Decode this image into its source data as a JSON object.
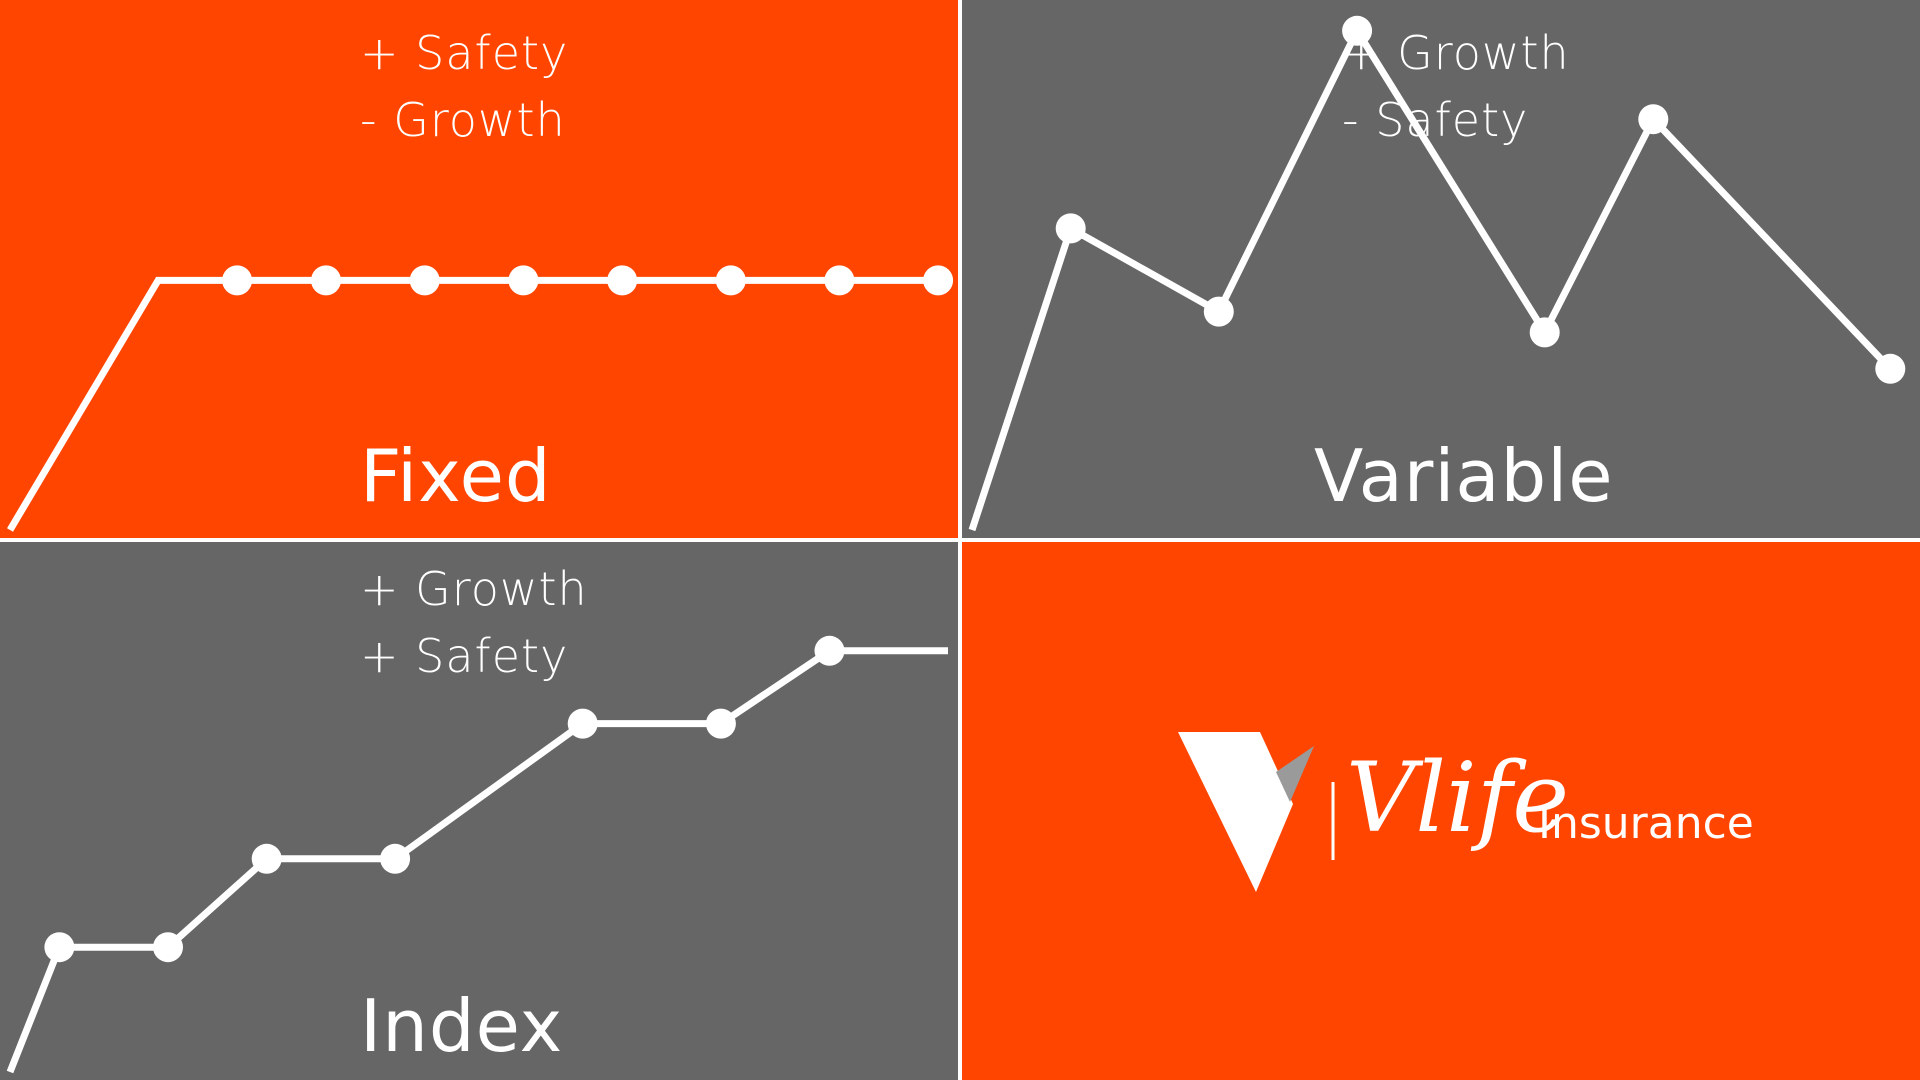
{
  "colors": {
    "orange": "#ff4500",
    "gray": "#666666",
    "line": "#ffffff",
    "logo_accent": "#9a9a9a"
  },
  "chart_data": [
    {
      "type": "line",
      "title": "Fixed",
      "pros_cons": [
        "+ Safety",
        "- Growth"
      ],
      "series": [
        {
          "x": [
            0,
            1.5,
            2.3,
            3.2,
            4.2,
            5.2,
            6.2,
            7.3,
            8.4,
            9.4
          ],
          "y": [
            0,
            4.8,
            4.8,
            4.8,
            4.8,
            4.8,
            4.8,
            4.8,
            4.8,
            4.8
          ],
          "markers": [
            false,
            false,
            true,
            true,
            true,
            true,
            true,
            true,
            true,
            true
          ]
        }
      ],
      "xlim": [
        0,
        9.5
      ],
      "ylim": [
        0,
        10
      ],
      "background": "orange"
    },
    {
      "type": "line",
      "title": "Variable",
      "pros_cons": [
        "+ Growth",
        "- Safety"
      ],
      "series": [
        {
          "x": [
            0,
            1,
            2.5,
            3.9,
            5.8,
            6.9,
            9.3
          ],
          "y": [
            0,
            5.8,
            4.2,
            9.6,
            3.8,
            7.9,
            3.1
          ],
          "markers": [
            false,
            true,
            true,
            true,
            true,
            true,
            true
          ]
        }
      ],
      "xlim": [
        0,
        9.5
      ],
      "ylim": [
        0,
        10
      ],
      "background": "gray"
    },
    {
      "type": "line",
      "title": "Index",
      "pros_cons": [
        "+ Growth",
        "+ Safety"
      ],
      "series": [
        {
          "x": [
            0,
            0.5,
            1.6,
            2.6,
            3.9,
            5.8,
            7.2,
            8.3,
            9.5
          ],
          "y": [
            0,
            2.4,
            2.4,
            4.1,
            4.1,
            6.7,
            6.7,
            8.1,
            8.1
          ],
          "markers": [
            false,
            true,
            true,
            true,
            true,
            true,
            true,
            true,
            false
          ]
        }
      ],
      "xlim": [
        0,
        9.5
      ],
      "ylim": [
        0,
        10
      ],
      "background": "gray"
    }
  ],
  "logo": {
    "word": "Vlife",
    "suffix": "Insurance",
    "mark_icon": "v-shield-icon"
  }
}
